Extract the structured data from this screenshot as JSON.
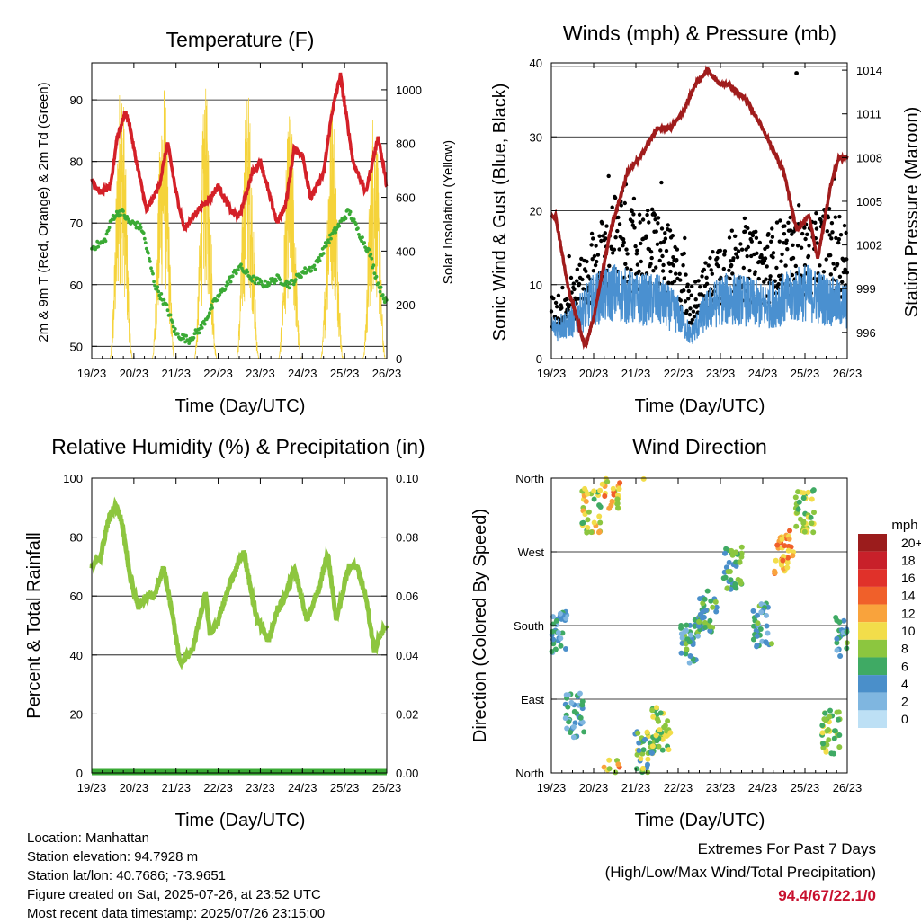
{
  "temperature_panel": {
    "title": "Temperature (F)",
    "ylabel_left": "2m & 9m T (Red, Orange) & 2m Td (Green)",
    "ylabel_right": "Solar Insolation (Yellow)",
    "xlabel": "Time (Day/UTC)"
  },
  "winds_panel": {
    "title": "Winds (mph) & Pressure (mb)",
    "ylabel_left": "Sonic Wind & Gust (Blue, Black)",
    "ylabel_right": "Station Pressure (Maroon)",
    "xlabel": "Time (Day/UTC)"
  },
  "humidity_panel": {
    "title": "Relative Humidity (%) & Precipitation (in)",
    "ylabel_left": "Percent & Total Rainfall",
    "xlabel": "Time (Day/UTC)"
  },
  "direction_panel": {
    "title": "Wind Direction",
    "ylabel_left": "Direction (Colored By Speed)",
    "xlabel": "Time (Day/UTC)",
    "legend_title": "mph"
  },
  "info": {
    "location": "Location: Manhattan",
    "elevation": "Station elevation: 94.7928 m",
    "latlon": "Station lat/lon: 40.7686; -73.9651",
    "created": "Figure created on Sat, 2025-07-26, at 23:52 UTC",
    "recent": "Most recent data timestamp: 2025/07/26 23:15:00"
  },
  "extremes": {
    "line1": "Extremes For Past 7 Days",
    "line2": "(High/Low/Max Wind/Total Precipitation)",
    "values": "94.4/67/22.1/0"
  },
  "colors": {
    "temp_red": "#d42028",
    "dewpoint_green": "#3aaa35",
    "solar_yellow": "#f5d33a",
    "gust_black": "#000000",
    "wind_blue": "#4a90d0",
    "pressure_maroon": "#a01c1c",
    "rh_green": "#8dc63f",
    "precip_green": "#3aaa35"
  },
  "chart_data": [
    {
      "type": "line",
      "title": "Temperature (F)",
      "xlabel": "Time (Day/UTC)",
      "ylabel": "2m & 9m T (Red, Orange) & 2m Td (Green)",
      "ylabel_right": "Solar Insolation (Yellow)",
      "x_ticks": [
        "19/23",
        "20/23",
        "21/23",
        "22/23",
        "23/23",
        "24/23",
        "25/23",
        "26/23"
      ],
      "ylim": [
        48,
        96
      ],
      "y_ticks": [
        50,
        60,
        70,
        80,
        90
      ],
      "ylim_right": [
        0,
        1100
      ],
      "y_ticks_right": [
        0,
        200,
        400,
        600,
        800,
        1000
      ],
      "grid": true,
      "series": [
        {
          "name": "2m T",
          "color": "#d42028",
          "axis": "left",
          "x_days": [
            0,
            0.2,
            0.45,
            0.6,
            0.8,
            0.9,
            1.0,
            1.3,
            1.6,
            1.8,
            2.0,
            2.2,
            2.5,
            2.8,
            3.0,
            3.3,
            3.5,
            3.8,
            4.0,
            4.4,
            4.6,
            4.8,
            5.0,
            5.2,
            5.5,
            5.7,
            5.9,
            6.2,
            6.5,
            6.8,
            7.0
          ],
          "values": [
            77,
            75,
            76,
            84,
            88,
            86,
            82,
            72,
            76,
            83,
            75,
            69,
            72,
            74,
            76,
            72,
            71,
            78,
            80,
            70,
            73,
            82,
            81,
            74,
            78,
            88,
            94,
            80,
            75,
            84,
            76
          ]
        },
        {
          "name": "2m Td",
          "color": "#3aaa35",
          "axis": "left",
          "x_days": [
            0,
            0.3,
            0.5,
            0.7,
            0.9,
            1.0,
            1.2,
            1.5,
            1.8,
            2.0,
            2.3,
            2.6,
            2.9,
            3.2,
            3.5,
            3.8,
            4.1,
            4.4,
            4.7,
            5.0,
            5.3,
            5.6,
            5.9,
            6.1,
            6.3,
            6.6,
            6.8,
            7.0
          ],
          "values": [
            66,
            67,
            71,
            72,
            70,
            70,
            69,
            60,
            56,
            52,
            51,
            53,
            57,
            60,
            63,
            61,
            60,
            61,
            60,
            62,
            63,
            67,
            70,
            72,
            69,
            65,
            60,
            57
          ]
        },
        {
          "name": "Solar Insolation",
          "color": "#f5d33a",
          "axis": "right",
          "day_peaks": [
            1080,
            1060,
            1010,
            1020,
            930,
            1000,
            980
          ],
          "peak_offsets": [
            0.7,
            1.7,
            2.7,
            3.7,
            4.7,
            5.7,
            6.7
          ]
        }
      ]
    },
    {
      "type": "scatter",
      "title": "Winds (mph) & Pressure (mb)",
      "xlabel": "Time (Day/UTC)",
      "ylabel": "Sonic Wind & Gust (Blue, Black)",
      "ylabel_right": "Station Pressure (Maroon)",
      "x_ticks": [
        "19/23",
        "20/23",
        "21/23",
        "22/23",
        "23/23",
        "24/23",
        "25/23",
        "26/23"
      ],
      "ylim": [
        0,
        40
      ],
      "y_ticks": [
        0,
        10,
        20,
        30,
        40
      ],
      "ylim_right": [
        994.2,
        1014.5
      ],
      "y_ticks_right": [
        996,
        999,
        1002,
        1005,
        1008,
        1011,
        1014
      ],
      "grid": true,
      "series": [
        {
          "name": "Gust",
          "color": "#000000",
          "type": "scatter",
          "max": 38.6,
          "x_days": [
            0,
            0.5,
            1.0,
            1.5,
            2.0,
            2.5,
            3.0,
            3.3,
            3.6,
            4.0,
            4.5,
            5.0,
            5.5,
            6.0,
            6.5,
            7.0
          ],
          "values": [
            6,
            8,
            12,
            16,
            14,
            15,
            11,
            7,
            9,
            12,
            13,
            12,
            14,
            13,
            15,
            13
          ]
        },
        {
          "name": "Wind",
          "color": "#4a90d0",
          "type": "area",
          "x_days": [
            0,
            0.5,
            1.0,
            1.5,
            2.0,
            2.5,
            3.0,
            3.3,
            3.6,
            4.0,
            4.5,
            5.0,
            5.5,
            6.0,
            6.5,
            7.0
          ],
          "values": [
            4,
            5,
            8,
            9,
            8,
            8,
            6,
            3,
            6,
            8,
            8,
            7,
            8,
            9,
            8,
            7
          ]
        },
        {
          "name": "Station Pressure",
          "color": "#a01c1c",
          "type": "line",
          "x_days": [
            0,
            0.1,
            0.4,
            0.8,
            1.0,
            1.4,
            1.8,
            2.1,
            2.5,
            2.8,
            3.1,
            3.4,
            3.7,
            4.0,
            4.2,
            4.6,
            5.0,
            5.5,
            5.8,
            6.1,
            6.3,
            6.6,
            6.8,
            7.0
          ],
          "values": [
            1004,
            1004,
            999,
            995,
            997,
            1003,
            1007,
            1008,
            1010,
            1010,
            1011,
            1013,
            1014,
            1013,
            1013,
            1012,
            1010,
            1007,
            1003,
            1004,
            1001,
            1006,
            1008,
            1008
          ]
        }
      ]
    },
    {
      "type": "line",
      "title": "Relative Humidity (%) & Precipitation (in)",
      "xlabel": "Time (Day/UTC)",
      "ylabel": "Percent & Total Rainfall",
      "x_ticks": [
        "19/23",
        "20/23",
        "21/23",
        "22/23",
        "23/23",
        "24/23",
        "25/23",
        "26/23"
      ],
      "ylim": [
        0,
        100
      ],
      "y_ticks": [
        0,
        20,
        40,
        60,
        80,
        100
      ],
      "ylim_right": [
        0.0,
        0.1
      ],
      "y_ticks_right": [
        "0.00",
        "0.02",
        "0.04",
        "0.06",
        "0.08",
        "0.10"
      ],
      "grid": true,
      "series": [
        {
          "name": "RH",
          "color": "#8dc63f",
          "axis": "left",
          "x_days": [
            0,
            0.2,
            0.4,
            0.55,
            0.7,
            0.9,
            1.1,
            1.3,
            1.5,
            1.7,
            1.9,
            2.1,
            2.4,
            2.7,
            2.8,
            3.0,
            3.3,
            3.6,
            3.9,
            4.2,
            4.4,
            4.6,
            4.8,
            5.1,
            5.4,
            5.6,
            5.8,
            6.1,
            6.3,
            6.5,
            6.7,
            6.85,
            7.0
          ],
          "values": [
            70,
            73,
            86,
            91,
            86,
            68,
            56,
            60,
            60,
            70,
            55,
            37,
            42,
            61,
            47,
            52,
            65,
            75,
            53,
            45,
            55,
            60,
            70,
            52,
            63,
            75,
            52,
            70,
            70,
            60,
            42,
            47,
            50
          ]
        },
        {
          "name": "Total Precipitation",
          "color": "#3aaa35",
          "axis": "right",
          "x_days": [
            0,
            7
          ],
          "values": [
            0,
            0
          ]
        }
      ]
    },
    {
      "type": "scatter",
      "title": "Wind Direction",
      "xlabel": "Time (Day/UTC)",
      "ylabel": "Direction (Colored By Speed)",
      "x_ticks": [
        "19/23",
        "20/23",
        "21/23",
        "22/23",
        "23/23",
        "24/23",
        "25/23",
        "26/23"
      ],
      "y_ticks": [
        "North",
        "East",
        "South",
        "West",
        "North"
      ],
      "ylim": [
        0,
        360
      ],
      "grid": true,
      "legend": {
        "title": "mph",
        "labels": [
          "20+",
          "18",
          "16",
          "14",
          "12",
          "10",
          "8",
          "6",
          "4",
          "2",
          "0"
        ],
        "colors": [
          "#9b1c1c",
          "#c8202a",
          "#e0312a",
          "#f0602a",
          "#f9a33c",
          "#f2dd4a",
          "#8cc63f",
          "#3faa64",
          "#4a8fca",
          "#7fb6e0",
          "#bde0f5"
        ]
      },
      "clusters": [
        {
          "t": 0.15,
          "dir": 170,
          "speed": 4
        },
        {
          "t": 0.55,
          "dir": 70,
          "speed": 4
        },
        {
          "t": 0.95,
          "dir": 320,
          "speed": 9
        },
        {
          "t": 1.4,
          "dir": 350,
          "speed": 11
        },
        {
          "t": 2.2,
          "dir": 25,
          "speed": 7
        },
        {
          "t": 2.6,
          "dir": 55,
          "speed": 8
        },
        {
          "t": 3.25,
          "dir": 160,
          "speed": 5
        },
        {
          "t": 3.7,
          "dir": 200,
          "speed": 6
        },
        {
          "t": 4.3,
          "dir": 250,
          "speed": 6
        },
        {
          "t": 5.0,
          "dir": 180,
          "speed": 5
        },
        {
          "t": 5.5,
          "dir": 270,
          "speed": 12
        },
        {
          "t": 6.0,
          "dir": 320,
          "speed": 8
        },
        {
          "t": 6.6,
          "dir": 50,
          "speed": 8
        },
        {
          "t": 6.95,
          "dir": 170,
          "speed": 5
        }
      ]
    }
  ]
}
